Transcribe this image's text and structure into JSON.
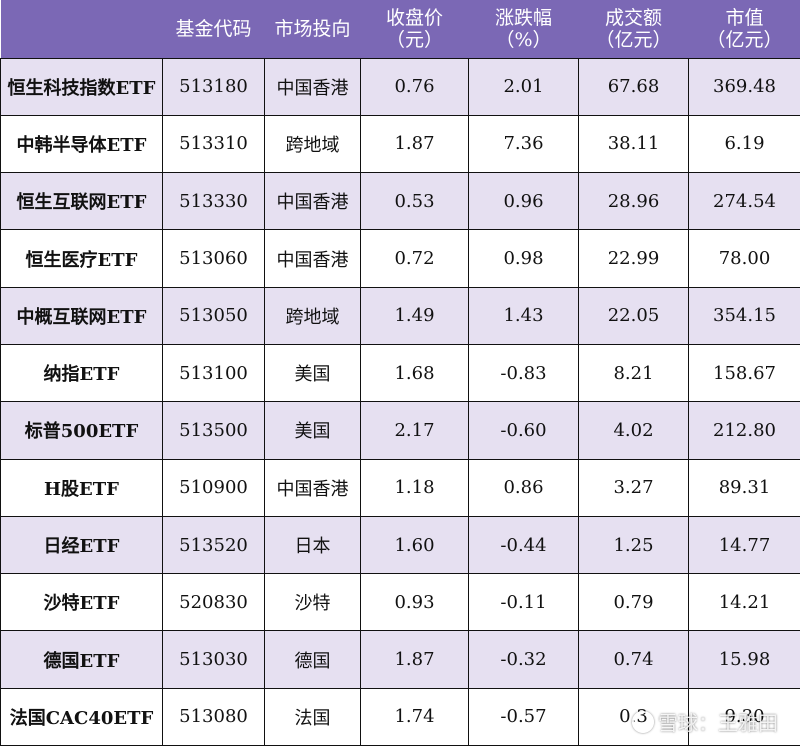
{
  "header": {
    "name": "",
    "code": "基金代码",
    "market": "市场投向",
    "close_line1": "收盘价",
    "close_line2": "（元）",
    "change_line1": "涨跌幅",
    "change_line2": "（%）",
    "volume_line1": "成交额",
    "volume_line2": "（亿元）",
    "cap_line1": "市值",
    "cap_line2": "（亿元）"
  },
  "rows": [
    {
      "name": "恒生科技指数ETF",
      "code": "513180",
      "market": "中国香港",
      "close": "0.76",
      "change": "2.01",
      "volume": "67.68",
      "cap": "369.48"
    },
    {
      "name": "中韩半导体ETF",
      "code": "513310",
      "market": "跨地域",
      "close": "1.87",
      "change": "7.36",
      "volume": "38.11",
      "cap": "6.19"
    },
    {
      "name": "恒生互联网ETF",
      "code": "513330",
      "market": "中国香港",
      "close": "0.53",
      "change": "0.96",
      "volume": "28.96",
      "cap": "274.54"
    },
    {
      "name": "恒生医疗ETF",
      "code": "513060",
      "market": "中国香港",
      "close": "0.72",
      "change": "0.98",
      "volume": "22.99",
      "cap": "78.00"
    },
    {
      "name": "中概互联网ETF",
      "code": "513050",
      "market": "跨地域",
      "close": "1.49",
      "change": "1.43",
      "volume": "22.05",
      "cap": "354.15"
    },
    {
      "name": "纳指ETF",
      "code": "513100",
      "market": "美国",
      "close": "1.68",
      "change": "-0.83",
      "volume": "8.21",
      "cap": "158.67"
    },
    {
      "name": "标普500ETF",
      "code": "513500",
      "market": "美国",
      "close": "2.17",
      "change": "-0.60",
      "volume": "4.02",
      "cap": "212.80"
    },
    {
      "name": "H股ETF",
      "code": "510900",
      "market": "中国香港",
      "close": "1.18",
      "change": "0.86",
      "volume": "3.27",
      "cap": "89.31"
    },
    {
      "name": "日经ETF",
      "code": "513520",
      "market": "日本",
      "close": "1.60",
      "change": "-0.44",
      "volume": "1.25",
      "cap": "14.77"
    },
    {
      "name": "沙特ETF",
      "code": "520830",
      "market": "沙特",
      "close": "0.93",
      "change": "-0.11",
      "volume": "0.79",
      "cap": "14.21"
    },
    {
      "name": "德国ETF",
      "code": "513030",
      "market": "德国",
      "close": "1.87",
      "change": "-0.32",
      "volume": "0.74",
      "cap": "15.98"
    },
    {
      "name": "法国CAC40ETF",
      "code": "513080",
      "market": "法国",
      "close": "1.74",
      "change": "-0.57",
      "volume": "0.3",
      "cap": "9.30"
    }
  ],
  "watermark": {
    "text": "雪球：王雅田"
  },
  "colors": {
    "header_bg": "#7b68b5",
    "band": "#e6e0f1"
  }
}
